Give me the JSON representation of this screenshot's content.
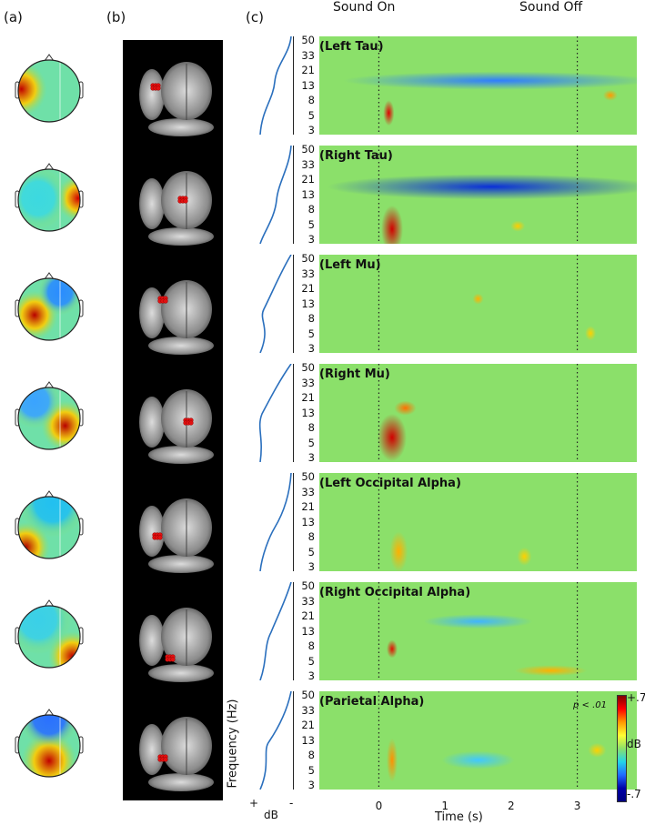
{
  "panels": {
    "a": "(a)",
    "b": "(b)",
    "c": "(c)"
  },
  "events": {
    "on_label": "Sound On",
    "off_label": "Sound Off",
    "on_time": 0,
    "off_time": 3
  },
  "y_ticks": [
    "50",
    "33",
    "21",
    "13",
    "8",
    "5",
    "3"
  ],
  "x_ticks": [
    "0",
    "1",
    "2",
    "3"
  ],
  "x_label": "Time (s)",
  "y_label": "Frequency (Hz)",
  "spectrum_axis": {
    "plus": "+",
    "unit": "dB",
    "minus": "-"
  },
  "colorbar": {
    "max": "+.7",
    "unit": "dB",
    "min": "-.7"
  },
  "significance": "p < .01",
  "components": [
    {
      "name": "(Left Tau)"
    },
    {
      "name": "(Right Tau)"
    },
    {
      "name": "(Left Mu)"
    },
    {
      "name": "(Right Mu)"
    },
    {
      "name": "(Left Occipital Alpha)"
    },
    {
      "name": "(Right Occipital Alpha)"
    },
    {
      "name": "(Parietal Alpha)"
    }
  ],
  "colors": {
    "background_green": "#8be06a",
    "spectrum_line": "#2a6fbd",
    "event_line": "#222222"
  }
}
